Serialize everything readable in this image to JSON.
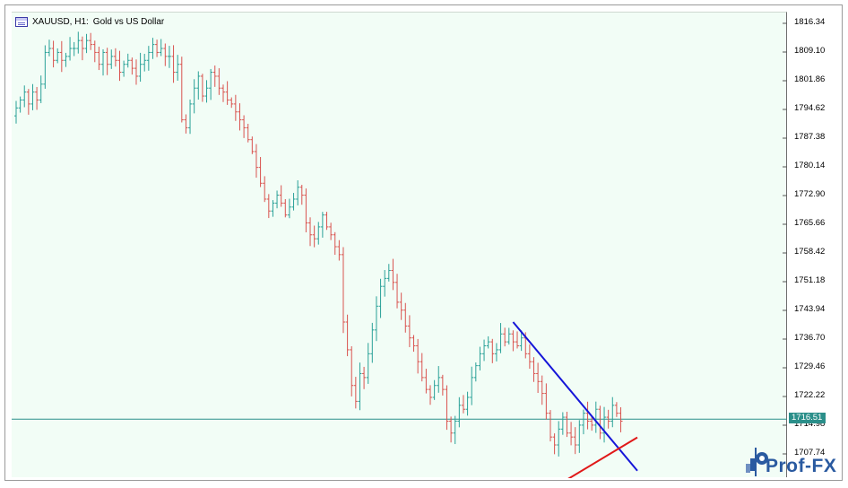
{
  "window": {
    "symbol": "XAUUSD, H1:",
    "description": "Gold vs US Dollar",
    "icon": "chart-window-icon"
  },
  "price_axis": {
    "labels": [
      "1816.34",
      "1809.10",
      "1801.86",
      "1794.62",
      "1787.38",
      "1780.14",
      "1772.90",
      "1765.66",
      "1758.42",
      "1751.18",
      "1743.94",
      "1736.70",
      "1729.46",
      "1722.22",
      "1714.98",
      "1707.74"
    ]
  },
  "current_price": {
    "label": "1716.51",
    "value": 1716.51,
    "line_color": "#2b8f8a"
  },
  "trendlines": [
    {
      "name": "resistance",
      "color": "#1515d8",
      "from": {
        "bar": 120,
        "price": 1741.0
      },
      "to": {
        "bar": 150,
        "price": 1703.5
      }
    },
    {
      "name": "support",
      "color": "#e01818",
      "from": {
        "bar": 131,
        "price": 1700.0
      },
      "to": {
        "bar": 150,
        "price": 1711.9
      }
    }
  ],
  "colors": {
    "up": "#2aa198",
    "down": "#d9534f",
    "background": "#f2fdf6"
  },
  "logo": {
    "text": "Prof-FX"
  },
  "chart_data": {
    "type": "candlestick",
    "timeframe": "H1",
    "ylim": [
      1700.0,
      1819.0
    ],
    "grid": false,
    "closes": [
      1795,
      1797,
      1799,
      1796,
      1799,
      1797,
      1801,
      1809,
      1810,
      1807,
      1809,
      1807,
      1808,
      1810,
      1810,
      1812,
      1810,
      1812,
      1811,
      1809,
      1806,
      1809,
      1806,
      1808,
      1807,
      1804,
      1806,
      1807,
      1805,
      1803,
      1806,
      1807,
      1809,
      1811,
      1809,
      1810,
      1808,
      1808,
      1804,
      1806,
      1792,
      1790,
      1796,
      1800,
      1803,
      1798,
      1800,
      1804,
      1803,
      1800,
      1799,
      1797,
      1796,
      1794,
      1792,
      1790,
      1787,
      1784,
      1780,
      1776,
      1772,
      1769,
      1771,
      1773,
      1771,
      1768,
      1770,
      1772,
      1775,
      1773,
      1766,
      1763,
      1762,
      1765,
      1768,
      1765,
      1763,
      1760,
      1758,
      1741,
      1734,
      1725,
      1721,
      1728,
      1727,
      1733,
      1739,
      1745,
      1750,
      1752,
      1754,
      1751,
      1746,
      1744,
      1740,
      1737,
      1735,
      1731,
      1727,
      1724,
      1722,
      1725,
      1727,
      1724,
      1716,
      1713,
      1716,
      1720,
      1719,
      1722,
      1727,
      1730,
      1733,
      1735,
      1736,
      1733,
      1734,
      1738,
      1736,
      1738,
      1736,
      1735,
      1737,
      1733,
      1731,
      1728,
      1726,
      1723,
      1718,
      1712,
      1710,
      1714,
      1717,
      1713,
      1712,
      1710,
      1715,
      1718,
      1716,
      1715,
      1719,
      1713,
      1717,
      1716,
      1720,
      1718,
      1716
    ]
  }
}
